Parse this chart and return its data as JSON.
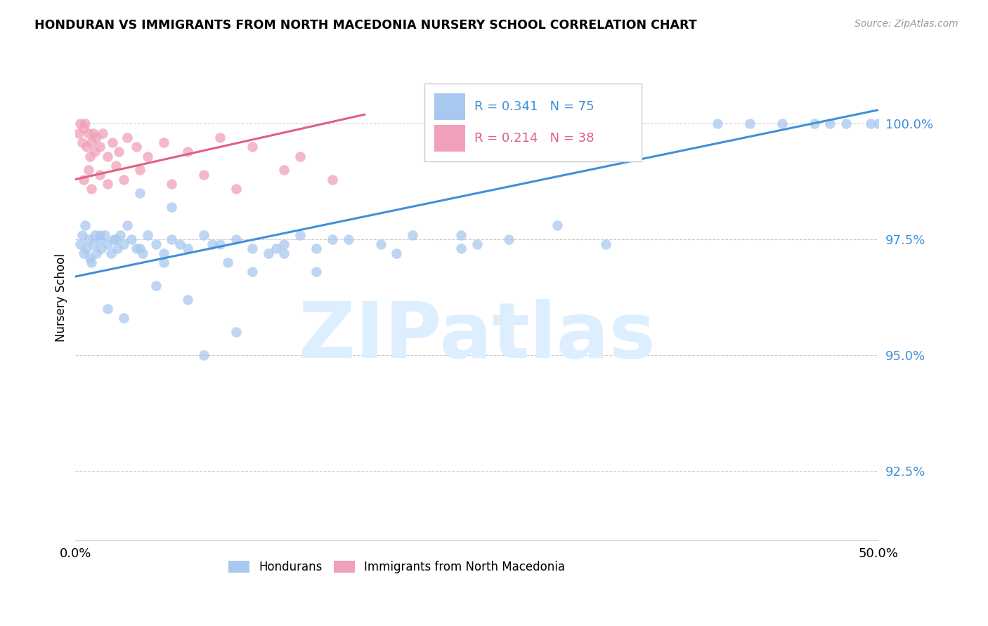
{
  "title": "HONDURAN VS IMMIGRANTS FROM NORTH MACEDONIA NURSERY SCHOOL CORRELATION CHART",
  "source": "Source: ZipAtlas.com",
  "ylabel": "Nursery School",
  "yticks": [
    92.5,
    95.0,
    97.5,
    100.0
  ],
  "ytick_labels": [
    "92.5%",
    "95.0%",
    "97.5%",
    "100.0%"
  ],
  "xlim": [
    0.0,
    50.0
  ],
  "ylim": [
    91.0,
    101.5
  ],
  "blue_color": "#a8c8f0",
  "pink_color": "#f0a0b8",
  "blue_line_color": "#4090d8",
  "pink_line_color": "#e06080",
  "watermark": "ZIPatlas",
  "watermark_color": "#ddeeff",
  "blue_scatter_x": [
    0.3,
    0.4,
    0.5,
    0.6,
    0.7,
    0.8,
    0.9,
    1.0,
    1.1,
    1.2,
    1.3,
    1.5,
    1.6,
    1.8,
    2.0,
    2.2,
    2.4,
    2.6,
    2.8,
    3.0,
    3.2,
    3.5,
    4.0,
    4.5,
    5.0,
    5.5,
    6.0,
    7.0,
    8.0,
    9.0,
    10.0,
    11.0,
    12.0,
    13.0,
    14.0,
    15.0,
    17.0,
    19.0,
    21.0,
    24.0,
    27.0,
    30.0,
    33.0,
    24.0,
    13.0,
    8.5,
    5.5,
    3.8,
    2.5,
    1.5,
    4.2,
    6.5,
    9.5,
    12.5,
    16.0,
    20.0,
    25.0,
    40.0,
    42.0,
    44.0,
    46.0,
    47.0,
    48.0,
    49.5,
    50.0,
    2.0,
    3.0,
    5.0,
    7.0,
    10.0,
    15.0,
    4.0,
    6.0,
    8.0,
    11.0
  ],
  "blue_scatter_y": [
    97.4,
    97.6,
    97.2,
    97.8,
    97.3,
    97.5,
    97.1,
    97.0,
    97.4,
    97.6,
    97.2,
    97.5,
    97.3,
    97.6,
    97.4,
    97.2,
    97.5,
    97.3,
    97.6,
    97.4,
    97.8,
    97.5,
    97.3,
    97.6,
    97.4,
    97.2,
    97.5,
    97.3,
    97.6,
    97.4,
    97.5,
    97.3,
    97.2,
    97.4,
    97.6,
    97.3,
    97.5,
    97.4,
    97.6,
    97.3,
    97.5,
    97.8,
    97.4,
    97.6,
    97.2,
    97.4,
    97.0,
    97.3,
    97.5,
    97.6,
    97.2,
    97.4,
    97.0,
    97.3,
    97.5,
    97.2,
    97.4,
    100.0,
    100.0,
    100.0,
    100.0,
    100.0,
    100.0,
    100.0,
    100.0,
    96.0,
    95.8,
    96.5,
    96.2,
    95.5,
    96.8,
    98.5,
    98.2,
    95.0,
    96.8
  ],
  "pink_scatter_x": [
    0.2,
    0.3,
    0.4,
    0.5,
    0.6,
    0.7,
    0.8,
    0.9,
    1.0,
    1.1,
    1.2,
    1.3,
    1.5,
    1.7,
    2.0,
    2.3,
    2.7,
    3.2,
    3.8,
    4.5,
    5.5,
    7.0,
    9.0,
    11.0,
    14.0,
    0.5,
    0.8,
    1.0,
    1.5,
    2.0,
    2.5,
    3.0,
    4.0,
    6.0,
    8.0,
    10.0,
    13.0,
    16.0
  ],
  "pink_scatter_y": [
    99.8,
    100.0,
    99.6,
    99.9,
    100.0,
    99.5,
    99.8,
    99.3,
    99.6,
    99.8,
    99.4,
    99.7,
    99.5,
    99.8,
    99.3,
    99.6,
    99.4,
    99.7,
    99.5,
    99.3,
    99.6,
    99.4,
    99.7,
    99.5,
    99.3,
    98.8,
    99.0,
    98.6,
    98.9,
    98.7,
    99.1,
    98.8,
    99.0,
    98.7,
    98.9,
    98.6,
    99.0,
    98.8
  ],
  "blue_line_x0": 0.0,
  "blue_line_x1": 50.0,
  "blue_line_y0": 96.7,
  "blue_line_y1": 100.3,
  "pink_line_x0": 0.0,
  "pink_line_x1": 18.0,
  "pink_line_y0": 98.8,
  "pink_line_y1": 100.2
}
